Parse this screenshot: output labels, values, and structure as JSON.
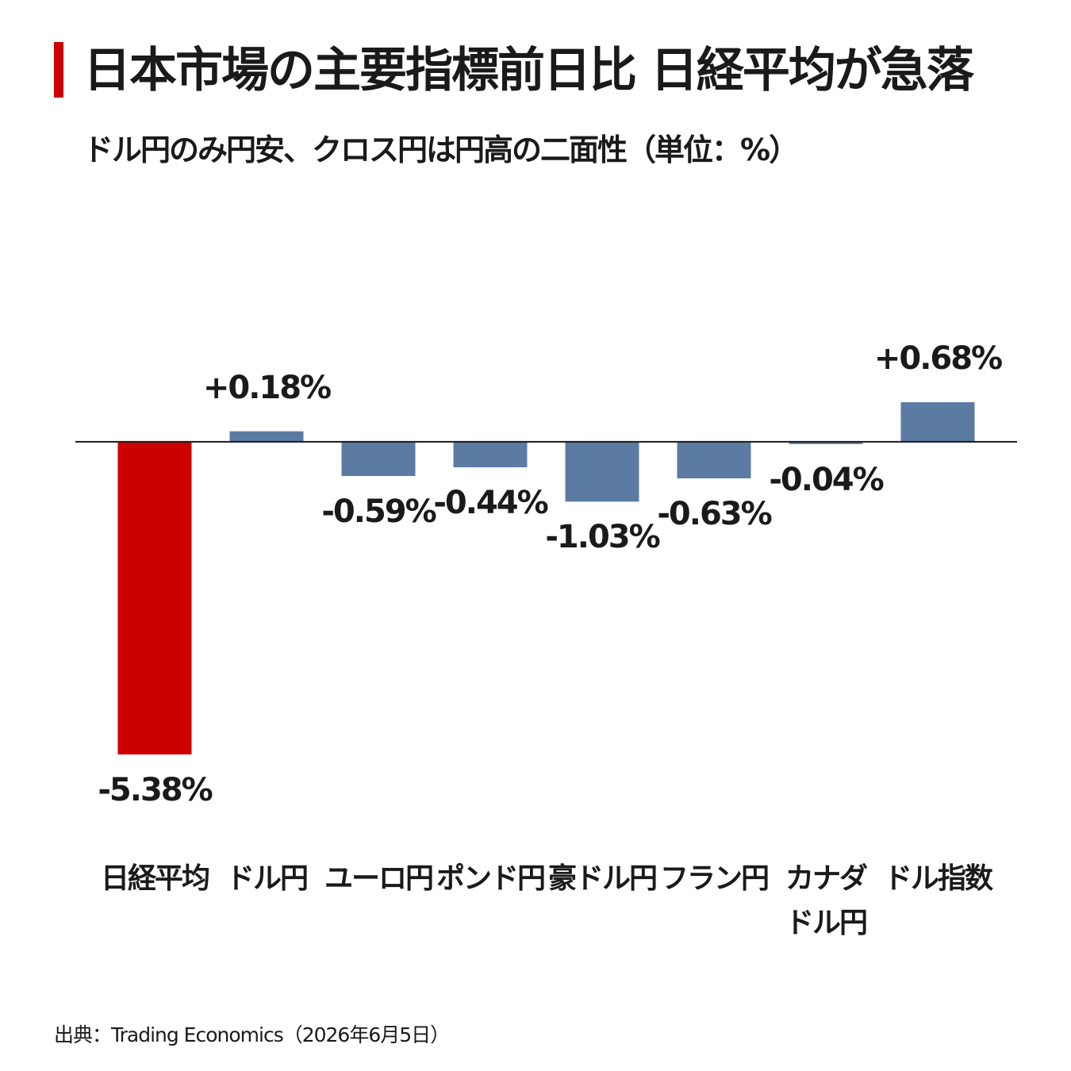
{
  "chart_data": {
    "type": "bar",
    "title": "日本市場の主要指標前日比 日経平均が急落",
    "subtitle": "ドル円のみ円安、クロス円は円高の二面性（単位：%）",
    "categories": [
      "日経平均",
      "ドル円",
      "ユーロ円",
      "ポンド円",
      "豪ドル円",
      "フラン円",
      "カナダ\nドル円",
      "ドル指数"
    ],
    "values": [
      -5.38,
      0.18,
      -0.59,
      -0.44,
      -1.03,
      -0.63,
      -0.04,
      0.68
    ],
    "value_labels": [
      "-5.38%",
      "+0.18%",
      "-0.59%",
      "-0.44%",
      "-1.03%",
      "-0.63%",
      "-0.04%",
      "+0.68%"
    ],
    "colors": [
      "#cc0000",
      "#5b7ba3",
      "#5b7ba3",
      "#5b7ba3",
      "#5b7ba3",
      "#5b7ba3",
      "#5b7ba3",
      "#5b7ba3"
    ],
    "source": "出典：Trading Economics（2026年6月5日）"
  }
}
